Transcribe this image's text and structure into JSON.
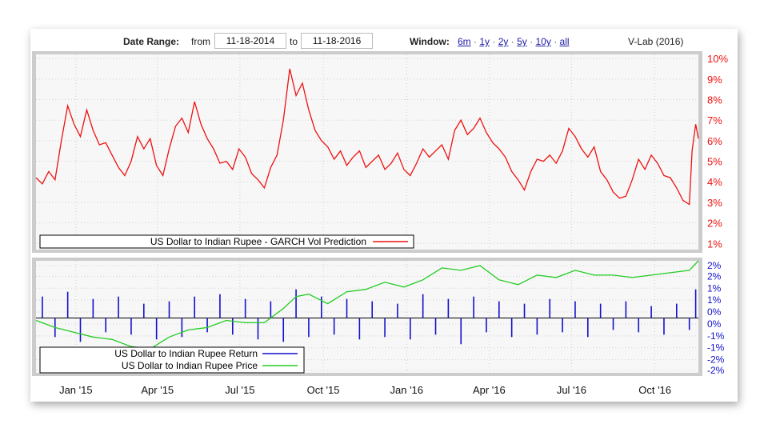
{
  "header": {
    "date_range_label": "Date Range:",
    "from_label": "from",
    "from_date": "11-18-2014",
    "to_label": "to",
    "to_date": "11-18-2016",
    "window_label": "Window:",
    "window_links": [
      "6m",
      "1y",
      "2y",
      "5y",
      "10y",
      "all"
    ],
    "credit": "V-Lab (2016)"
  },
  "colors": {
    "vol": "#ee1111",
    "returns": "#1111cc",
    "price": "#22cc22",
    "right_axis_top": "#ee1111",
    "right_axis_bottom": "#1111cc"
  },
  "chart_data": [
    {
      "type": "line",
      "title": "",
      "series": [
        {
          "name": "US Dollar to Indian Rupee - GARCH Vol Prediction",
          "x": [
            "2014-11-18",
            "2014-11-25",
            "2014-12-02",
            "2014-12-09",
            "2014-12-16",
            "2014-12-23",
            "2014-12-30",
            "2015-01-06",
            "2015-01-13",
            "2015-01-20",
            "2015-01-27",
            "2015-02-03",
            "2015-02-10",
            "2015-02-17",
            "2015-02-24",
            "2015-03-03",
            "2015-03-10",
            "2015-03-17",
            "2015-03-24",
            "2015-03-31",
            "2015-04-07",
            "2015-04-14",
            "2015-04-21",
            "2015-04-28",
            "2015-05-05",
            "2015-05-12",
            "2015-05-19",
            "2015-05-26",
            "2015-06-02",
            "2015-06-09",
            "2015-06-16",
            "2015-06-23",
            "2015-06-30",
            "2015-07-07",
            "2015-07-14",
            "2015-07-21",
            "2015-07-28",
            "2015-08-04",
            "2015-08-11",
            "2015-08-18",
            "2015-08-25",
            "2015-09-01",
            "2015-09-08",
            "2015-09-15",
            "2015-09-22",
            "2015-09-29",
            "2015-10-06",
            "2015-10-13",
            "2015-10-20",
            "2015-10-27",
            "2015-11-03",
            "2015-11-10",
            "2015-11-17",
            "2015-11-24",
            "2015-12-01",
            "2015-12-08",
            "2015-12-15",
            "2015-12-22",
            "2015-12-29",
            "2016-01-05",
            "2016-01-12",
            "2016-01-19",
            "2016-01-26",
            "2016-02-02",
            "2016-02-09",
            "2016-02-16",
            "2016-02-23",
            "2016-03-01",
            "2016-03-08",
            "2016-03-15",
            "2016-03-22",
            "2016-03-29",
            "2016-04-05",
            "2016-04-12",
            "2016-04-19",
            "2016-04-26",
            "2016-05-03",
            "2016-05-10",
            "2016-05-17",
            "2016-05-24",
            "2016-05-31",
            "2016-06-07",
            "2016-06-14",
            "2016-06-21",
            "2016-06-28",
            "2016-07-05",
            "2016-07-12",
            "2016-07-19",
            "2016-07-26",
            "2016-08-02",
            "2016-08-09",
            "2016-08-16",
            "2016-08-23",
            "2016-08-30",
            "2016-09-06",
            "2016-09-13",
            "2016-09-20",
            "2016-09-27",
            "2016-10-04",
            "2016-10-11",
            "2016-10-18",
            "2016-10-25",
            "2016-11-01",
            "2016-11-08",
            "2016-11-11",
            "2016-11-15",
            "2016-11-18"
          ],
          "y": [
            4.2,
            3.9,
            4.5,
            4.1,
            6.0,
            7.7,
            6.8,
            6.2,
            7.5,
            6.5,
            5.8,
            5.9,
            5.3,
            4.7,
            4.3,
            5.0,
            6.2,
            5.6,
            6.1,
            4.8,
            4.3,
            5.6,
            6.7,
            7.1,
            6.4,
            7.9,
            6.8,
            6.1,
            5.6,
            4.9,
            5.0,
            4.6,
            5.6,
            5.2,
            4.4,
            4.1,
            3.7,
            4.7,
            5.3,
            7.0,
            9.5,
            8.2,
            8.8,
            7.5,
            6.5,
            6.0,
            5.7,
            5.1,
            5.5,
            4.8,
            5.2,
            5.5,
            4.7,
            5.0,
            5.3,
            4.6,
            4.9,
            5.4,
            4.6,
            4.3,
            4.9,
            5.6,
            5.2,
            5.5,
            5.8,
            5.1,
            6.5,
            7.0,
            6.3,
            6.6,
            7.1,
            6.4,
            5.9,
            5.6,
            5.2,
            4.5,
            4.1,
            3.6,
            4.5,
            5.1,
            5.0,
            5.3,
            4.9,
            5.5,
            6.6,
            6.2,
            5.6,
            5.2,
            5.7,
            4.5,
            4.1,
            3.5,
            3.2,
            3.3,
            4.1,
            5.1,
            4.6,
            5.3,
            4.9,
            4.3,
            4.2,
            3.7,
            3.1,
            2.9,
            5.5,
            6.8,
            6.1
          ]
        }
      ],
      "xlim": [
        "2014-11-18",
        "2016-11-18"
      ],
      "ylim": [
        0.7,
        10.2
      ],
      "yticks": [
        "1%",
        "2%",
        "3%",
        "4%",
        "5%",
        "6%",
        "7%",
        "8%",
        "9%",
        "10%"
      ],
      "ytick_values": [
        1,
        2,
        3,
        4,
        5,
        6,
        7,
        8,
        9,
        10
      ],
      "y_axis_side": "right",
      "grid": true,
      "legend_position": "bottom-left"
    },
    {
      "type": "line",
      "title": "",
      "series": [
        {
          "name": "US Dollar to Indian Rupee Return",
          "render": "bar",
          "x": [
            "2014-11-25",
            "2014-12-09",
            "2014-12-23",
            "2015-01-06",
            "2015-01-20",
            "2015-02-03",
            "2015-02-17",
            "2015-03-03",
            "2015-03-17",
            "2015-03-31",
            "2015-04-14",
            "2015-04-28",
            "2015-05-12",
            "2015-05-26",
            "2015-06-09",
            "2015-06-23",
            "2015-07-07",
            "2015-07-21",
            "2015-08-04",
            "2015-08-18",
            "2015-09-01",
            "2015-09-15",
            "2015-09-29",
            "2015-10-13",
            "2015-10-27",
            "2015-11-10",
            "2015-11-24",
            "2015-12-08",
            "2015-12-22",
            "2016-01-05",
            "2016-01-19",
            "2016-02-02",
            "2016-02-16",
            "2016-03-01",
            "2016-03-15",
            "2016-03-29",
            "2016-04-12",
            "2016-04-26",
            "2016-05-10",
            "2016-05-24",
            "2016-06-07",
            "2016-06-21",
            "2016-07-05",
            "2016-07-19",
            "2016-08-02",
            "2016-08-16",
            "2016-08-30",
            "2016-09-13",
            "2016-09-27",
            "2016-10-11",
            "2016-10-25",
            "2016-11-08",
            "2016-11-15"
          ],
          "y": [
            0.9,
            -0.8,
            1.1,
            -1.0,
            0.8,
            -0.6,
            0.9,
            -0.7,
            0.6,
            -0.9,
            0.7,
            -0.8,
            0.9,
            -0.6,
            1.0,
            -0.7,
            0.8,
            -0.9,
            0.7,
            -1.0,
            1.2,
            -0.8,
            0.9,
            -0.7,
            0.8,
            -0.9,
            0.7,
            -0.8,
            0.6,
            -0.9,
            1.0,
            -0.7,
            0.8,
            -1.1,
            0.9,
            -0.6,
            0.7,
            -0.8,
            0.6,
            -0.7,
            0.8,
            -0.6,
            0.7,
            -0.8,
            0.6,
            -0.5,
            0.7,
            -0.6,
            0.5,
            -0.7,
            0.6,
            -0.5,
            1.2
          ]
        },
        {
          "name": "US Dollar to Indian Rupee Price",
          "x": [
            "2014-11-18",
            "2014-12-09",
            "2014-12-30",
            "2015-01-20",
            "2015-02-10",
            "2015-03-03",
            "2015-03-24",
            "2015-04-14",
            "2015-05-05",
            "2015-05-26",
            "2015-06-16",
            "2015-07-07",
            "2015-07-28",
            "2015-08-18",
            "2015-09-01",
            "2015-09-15",
            "2015-10-06",
            "2015-10-27",
            "2015-11-17",
            "2015-12-08",
            "2015-12-29",
            "2016-01-19",
            "2016-02-09",
            "2016-03-01",
            "2016-03-22",
            "2016-04-12",
            "2016-05-03",
            "2016-05-24",
            "2016-06-14",
            "2016-07-05",
            "2016-07-26",
            "2016-08-16",
            "2016-09-06",
            "2016-09-27",
            "2016-10-18",
            "2016-11-08",
            "2016-11-18"
          ],
          "y": [
            -0.1,
            -0.4,
            -0.6,
            -0.8,
            -0.9,
            -1.2,
            -1.3,
            -0.8,
            -0.5,
            -0.4,
            -0.1,
            -0.2,
            -0.2,
            0.4,
            0.9,
            1.0,
            0.6,
            1.1,
            1.2,
            1.5,
            1.3,
            1.6,
            2.1,
            2.0,
            2.2,
            1.6,
            1.4,
            1.8,
            1.7,
            2.0,
            1.8,
            1.8,
            1.7,
            1.8,
            1.9,
            2.0,
            2.4
          ]
        }
      ],
      "xlim": [
        "2014-11-18",
        "2016-11-18"
      ],
      "ylim": [
        -2.3,
        2.4
      ],
      "yticks": [
        "2%",
        "2%",
        "1%",
        "1%",
        "0%",
        "0%",
        "-1%",
        "-1%",
        "-2%",
        "-2%"
      ],
      "ytick_values": [
        2.2,
        1.75,
        1.25,
        0.75,
        0.25,
        -0.25,
        -0.75,
        -1.25,
        -1.75,
        -2.2
      ],
      "y_axis_side": "right",
      "xticks": [
        "Jan '15",
        "Apr '15",
        "Jul '15",
        "Oct '15",
        "Jan '16",
        "Apr '16",
        "Jul '16",
        "Oct '16"
      ],
      "xtick_dates": [
        "2015-01-01",
        "2015-04-01",
        "2015-07-01",
        "2015-10-01",
        "2016-01-01",
        "2016-04-01",
        "2016-07-01",
        "2016-10-01"
      ],
      "grid": true,
      "legend_position": "bottom-left"
    }
  ]
}
